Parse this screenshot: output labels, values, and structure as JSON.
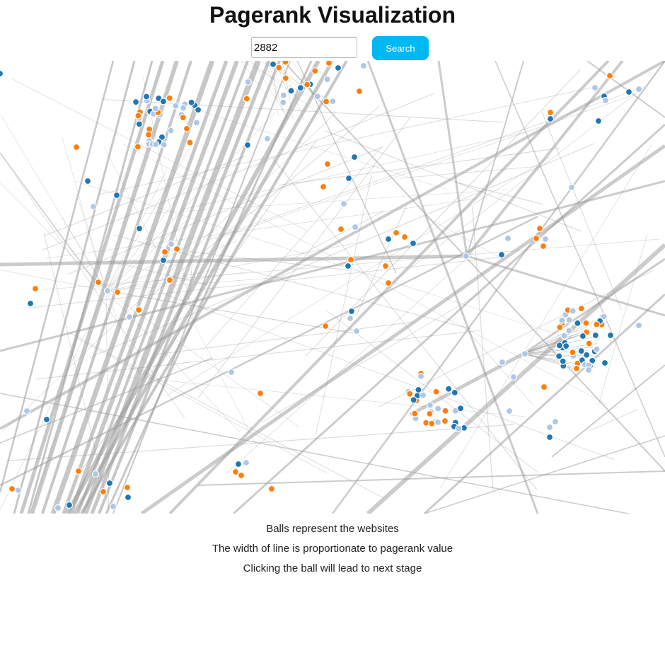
{
  "page": {
    "title": "Pagerank Visualization"
  },
  "search": {
    "value": "2882",
    "button_label": "Search"
  },
  "graph": {
    "node_colors": {
      "dark_blue": "#1f77b4",
      "orange": "#ff7f0e",
      "light_blue": "#aec7e8"
    },
    "edge_color": "#999999"
  },
  "captions": [
    "Balls represent the websites",
    "The width of line is proportionate to pagerank value",
    "Clicking the ball will lead to next stage"
  ]
}
